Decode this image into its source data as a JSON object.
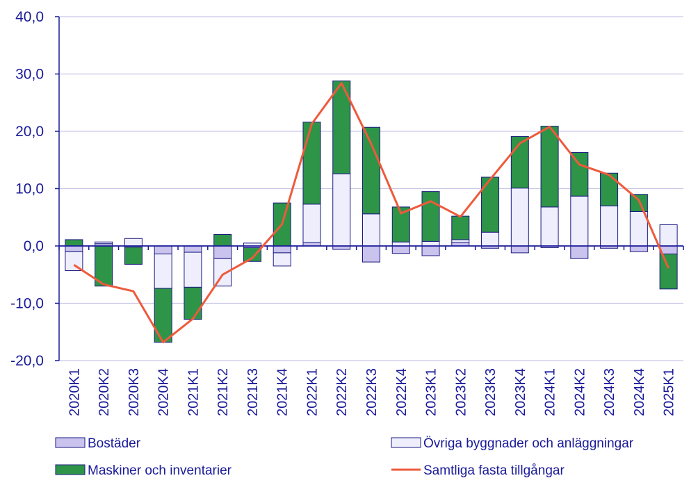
{
  "chart_data": {
    "type": "bar",
    "stacked": true,
    "categories": [
      "2020K1",
      "2020K2",
      "2020K3",
      "2020K4",
      "2021K1",
      "2021K2",
      "2021K3",
      "2021K4",
      "2022K1",
      "2022K2",
      "2022K3",
      "2022K4",
      "2023K1",
      "2023K2",
      "2023K3",
      "2023K4",
      "2024K1",
      "2024K2",
      "2024K3",
      "2024K4",
      "2025K1"
    ],
    "ylim": [
      -20,
      40
    ],
    "yticks": [
      -20,
      -10,
      0,
      10,
      20,
      30,
      40
    ],
    "ytick_labels": [
      "-20,0",
      "-10,0",
      "0,0",
      "10,0",
      "20,0",
      "30,0",
      "40,0"
    ],
    "grid": true,
    "legend_placement": "bottom",
    "series": [
      {
        "name": "Bostäder",
        "kind": "bar",
        "color": "#c9c3ee",
        "values": [
          -1.0,
          0.4,
          -0.2,
          -1.4,
          -1.1,
          -2.2,
          -0.3,
          -1.2,
          0.6,
          -0.6,
          -2.8,
          -1.3,
          -1.7,
          0.6,
          -0.4,
          -1.2,
          -0.3,
          -2.2,
          -0.4,
          -1.0,
          -1.4
        ]
      },
      {
        "name": "Övriga byggnader och anläggningar",
        "kind": "bar",
        "color": "#eeeefc",
        "values": [
          -3.3,
          0.3,
          1.3,
          -6.0,
          -6.1,
          -4.8,
          0.5,
          -2.3,
          6.7,
          12.6,
          5.6,
          0.7,
          0.8,
          0.5,
          2.4,
          10.1,
          6.8,
          8.7,
          7.0,
          6.0,
          3.7
        ]
      },
      {
        "name": "Maskiner och inventarier",
        "kind": "bar",
        "color": "#2e9448",
        "values": [
          1.1,
          -7.0,
          -3.0,
          -9.4,
          -5.6,
          2.0,
          -2.4,
          7.5,
          14.3,
          16.2,
          15.1,
          6.1,
          8.7,
          4.1,
          9.6,
          9.0,
          14.1,
          7.6,
          5.7,
          3.0,
          -6.1
        ]
      },
      {
        "name": "Samtliga fasta tillgångar",
        "kind": "line",
        "color": "#ee5a3c",
        "values": [
          -3.3,
          -6.7,
          -7.9,
          -16.8,
          -12.7,
          -5.0,
          -2.1,
          3.8,
          21.3,
          28.4,
          17.8,
          5.7,
          7.8,
          5.1,
          11.6,
          17.9,
          20.8,
          14.2,
          12.4,
          8.0,
          -3.9
        ]
      }
    ]
  }
}
